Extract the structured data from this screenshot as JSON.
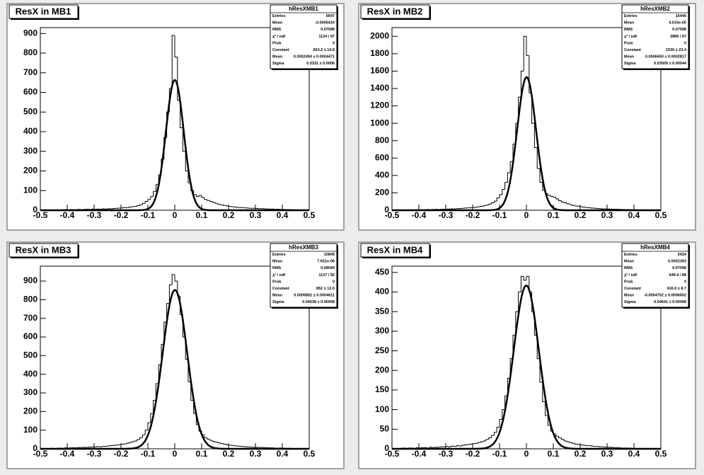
{
  "chart_data": [
    {
      "type": "histogram",
      "title": "ResX in MB1",
      "stats_title": "hResXMB1",
      "stats": [
        {
          "name": "Entries",
          "text": "6647"
        },
        {
          "name": "Mean",
          "text": "-0.0005419"
        },
        {
          "name": "RMS",
          "text": "0.07098"
        },
        {
          "name": "χ² / ndf",
          "text": "1134 / 97"
        },
        {
          "name": "Prob",
          "text": "0"
        },
        {
          "name": "Constant",
          "value": 663.2,
          "error": 14.9,
          "label": "663.2 ± 14.9"
        },
        {
          "name": "Mean",
          "value": 0.0002494,
          "error": 0.0004471,
          "label": "0.0002494 ± 0.0004471"
        },
        {
          "name": "Sigma",
          "value": 0.0331,
          "error": 0.0006,
          "label": "0.0331 ± 0.0006"
        }
      ],
      "bins": [
        -0.5,
        -0.49,
        -0.48,
        -0.47,
        -0.46,
        -0.45,
        -0.44,
        -0.43,
        -0.42,
        -0.41,
        -0.4,
        -0.39,
        -0.38,
        -0.37,
        -0.36,
        -0.35,
        -0.34,
        -0.33,
        -0.32,
        -0.31,
        -0.3,
        -0.29,
        -0.28,
        -0.27,
        -0.26,
        -0.25,
        -0.24,
        -0.23,
        -0.22,
        -0.21,
        -0.2,
        -0.19,
        -0.18,
        -0.17,
        -0.16,
        -0.15,
        -0.14,
        -0.13,
        -0.12,
        -0.11,
        -0.1,
        -0.09,
        -0.08,
        -0.07,
        -0.06,
        -0.05,
        -0.04,
        -0.03,
        -0.02,
        -0.01,
        0,
        0.01,
        0.02,
        0.03,
        0.04,
        0.05,
        0.06,
        0.07,
        0.08,
        0.09,
        0.1,
        0.11,
        0.12,
        0.13,
        0.14,
        0.15,
        0.16,
        0.17,
        0.18,
        0.19,
        0.2,
        0.21,
        0.22,
        0.23,
        0.24,
        0.25,
        0.26,
        0.27,
        0.28,
        0.29,
        0.3,
        0.31,
        0.32,
        0.33,
        0.34,
        0.35,
        0.36,
        0.37,
        0.38,
        0.39,
        0.4,
        0.41,
        0.42,
        0.43,
        0.44,
        0.45,
        0.46,
        0.47,
        0.48,
        0.49,
        0.5
      ],
      "values": [
        1,
        0,
        1,
        2,
        1,
        1,
        2,
        1,
        2,
        3,
        2,
        3,
        2,
        3,
        4,
        3,
        4,
        5,
        4,
        6,
        5,
        6,
        5,
        7,
        6,
        8,
        7,
        9,
        10,
        11,
        12,
        14,
        13,
        16,
        18,
        20,
        24,
        28,
        35,
        45,
        55,
        70,
        95,
        130,
        180,
        260,
        370,
        500,
        620,
        890,
        780,
        560,
        420,
        300,
        200,
        140,
        100,
        80,
        70,
        75,
        65,
        55,
        50,
        45,
        40,
        35,
        30,
        28,
        25,
        22,
        20,
        18,
        16,
        15,
        14,
        13,
        12,
        11,
        10,
        10,
        9,
        8,
        8,
        7,
        7,
        6,
        6,
        5,
        5,
        4,
        4,
        3,
        3,
        3,
        2,
        2,
        2,
        1,
        1,
        1
      ],
      "xlim": [
        -0.5,
        0.5
      ],
      "xticks": [
        -0.5,
        -0.4,
        -0.3,
        -0.2,
        -0.1,
        0,
        0.1,
        0.2,
        0.3,
        0.4,
        0.5
      ],
      "ylim": [
        0,
        930
      ],
      "yticks": [
        0,
        100,
        200,
        300,
        400,
        500,
        600,
        700,
        800,
        900
      ]
    },
    {
      "type": "histogram",
      "title": "ResX in MB2",
      "stats_title": "hResXMB2",
      "stats": [
        {
          "name": "Entries",
          "text": "16446"
        },
        {
          "name": "Mean",
          "text": "4.015e-05"
        },
        {
          "name": "RMS",
          "text": "0.07598"
        },
        {
          "name": "χ² / ndf",
          "text": "2889 / 97"
        },
        {
          "name": "Prob",
          "text": "0"
        },
        {
          "name": "Constant",
          "value": 1530,
          "error": 23.4,
          "label": "1530 ± 23.4"
        },
        {
          "name": "Mean",
          "value": 0.000665,
          "error": 0.0002817,
          "label": "0.0006650 ± 0.0002817"
        },
        {
          "name": "Sigma",
          "value": 0.03509,
          "error": 0.00044,
          "label": "0.03509 ± 0.00044"
        }
      ],
      "bins": [
        -0.5,
        -0.49,
        -0.48,
        -0.47,
        -0.46,
        -0.45,
        -0.44,
        -0.43,
        -0.42,
        -0.41,
        -0.4,
        -0.39,
        -0.38,
        -0.37,
        -0.36,
        -0.35,
        -0.34,
        -0.33,
        -0.32,
        -0.31,
        -0.3,
        -0.29,
        -0.28,
        -0.27,
        -0.26,
        -0.25,
        -0.24,
        -0.23,
        -0.22,
        -0.21,
        -0.2,
        -0.19,
        -0.18,
        -0.17,
        -0.16,
        -0.15,
        -0.14,
        -0.13,
        -0.12,
        -0.11,
        -0.1,
        -0.09,
        -0.08,
        -0.07,
        -0.06,
        -0.05,
        -0.04,
        -0.03,
        -0.02,
        -0.01,
        0,
        0.01,
        0.02,
        0.03,
        0.04,
        0.05,
        0.06,
        0.07,
        0.08,
        0.09,
        0.1,
        0.11,
        0.12,
        0.13,
        0.14,
        0.15,
        0.16,
        0.17,
        0.18,
        0.19,
        0.2,
        0.21,
        0.22,
        0.23,
        0.24,
        0.25,
        0.26,
        0.27,
        0.28,
        0.29,
        0.3,
        0.31,
        0.32,
        0.33,
        0.34,
        0.35,
        0.36,
        0.37,
        0.38,
        0.39,
        0.4,
        0.41,
        0.42,
        0.43,
        0.44,
        0.45,
        0.46,
        0.47,
        0.48,
        0.49,
        0.5
      ],
      "values": [
        2,
        1,
        3,
        2,
        3,
        4,
        3,
        5,
        4,
        6,
        5,
        6,
        7,
        8,
        7,
        9,
        10,
        9,
        11,
        12,
        13,
        14,
        16,
        15,
        18,
        20,
        22,
        25,
        27,
        30,
        32,
        36,
        40,
        45,
        52,
        60,
        70,
        85,
        105,
        140,
        180,
        240,
        320,
        430,
        560,
        760,
        1000,
        1300,
        1600,
        2000,
        1780,
        1350,
        1000,
        720,
        480,
        320,
        230,
        190,
        170,
        160,
        150,
        130,
        110,
        95,
        85,
        75,
        65,
        55,
        50,
        45,
        40,
        36,
        32,
        28,
        25,
        23,
        20,
        18,
        16,
        15,
        14,
        13,
        12,
        11,
        10,
        9,
        8,
        8,
        7,
        6,
        6,
        5,
        5,
        4,
        4,
        3,
        3,
        2,
        2,
        1
      ],
      "xlim": [
        -0.5,
        0.5
      ],
      "xticks": [
        -0.5,
        -0.4,
        -0.3,
        -0.2,
        -0.1,
        0,
        0.1,
        0.2,
        0.3,
        0.4,
        0.5
      ],
      "ylim": [
        0,
        2100
      ],
      "yticks": [
        0,
        200,
        400,
        600,
        800,
        1000,
        1200,
        1400,
        1600,
        1800,
        2000
      ]
    },
    {
      "type": "histogram",
      "title": "ResX in MB3",
      "stats_title": "hResXMB3",
      "stats": [
        {
          "name": "Entries",
          "text": "10849"
        },
        {
          "name": "Mean",
          "text": "7.921e-06"
        },
        {
          "name": "RMS",
          "text": "0.08044"
        },
        {
          "name": "χ² / ndf",
          "text": "1137 / 92"
        },
        {
          "name": "Prob",
          "text": "0"
        },
        {
          "name": "Constant",
          "value": 852,
          "error": 12.0,
          "label": "852 ± 12.0"
        },
        {
          "name": "Mean",
          "value": 0.0006862,
          "error": 0.0004611,
          "label": "0.0006862 ± 0.0004611"
        },
        {
          "name": "Sigma",
          "value": 0.04538,
          "error": 0.00058,
          "label": "0.04538 ± 0.00058"
        }
      ],
      "bins": [
        -0.5,
        -0.49,
        -0.48,
        -0.47,
        -0.46,
        -0.45,
        -0.44,
        -0.43,
        -0.42,
        -0.41,
        -0.4,
        -0.39,
        -0.38,
        -0.37,
        -0.36,
        -0.35,
        -0.34,
        -0.33,
        -0.32,
        -0.31,
        -0.3,
        -0.29,
        -0.28,
        -0.27,
        -0.26,
        -0.25,
        -0.24,
        -0.23,
        -0.22,
        -0.21,
        -0.2,
        -0.19,
        -0.18,
        -0.17,
        -0.16,
        -0.15,
        -0.14,
        -0.13,
        -0.12,
        -0.11,
        -0.1,
        -0.09,
        -0.08,
        -0.07,
        -0.06,
        -0.05,
        -0.04,
        -0.03,
        -0.02,
        -0.01,
        0,
        0.01,
        0.02,
        0.03,
        0.04,
        0.05,
        0.06,
        0.07,
        0.08,
        0.09,
        0.1,
        0.11,
        0.12,
        0.13,
        0.14,
        0.15,
        0.16,
        0.17,
        0.18,
        0.19,
        0.2,
        0.21,
        0.22,
        0.23,
        0.24,
        0.25,
        0.26,
        0.27,
        0.28,
        0.29,
        0.3,
        0.31,
        0.32,
        0.33,
        0.34,
        0.35,
        0.36,
        0.37,
        0.38,
        0.39,
        0.4,
        0.41,
        0.42,
        0.43,
        0.44,
        0.45,
        0.46,
        0.47,
        0.48,
        0.49,
        0.5
      ],
      "values": [
        1,
        2,
        1,
        2,
        3,
        2,
        3,
        4,
        3,
        5,
        4,
        5,
        6,
        5,
        7,
        6,
        8,
        7,
        9,
        10,
        10,
        12,
        11,
        13,
        14,
        15,
        17,
        18,
        20,
        22,
        24,
        26,
        30,
        33,
        38,
        42,
        50,
        60,
        75,
        100,
        140,
        190,
        260,
        350,
        450,
        560,
        680,
        780,
        880,
        935,
        900,
        820,
        720,
        600,
        480,
        360,
        260,
        190,
        130,
        95,
        75,
        60,
        52,
        45,
        40,
        36,
        32,
        28,
        25,
        22,
        20,
        18,
        16,
        15,
        14,
        12,
        11,
        10,
        9,
        8,
        8,
        7,
        7,
        6,
        6,
        5,
        5,
        4,
        4,
        4,
        3,
        3,
        3,
        2,
        2,
        2,
        1,
        1,
        1,
        0
      ],
      "xlim": [
        -0.5,
        0.5
      ],
      "xticks": [
        -0.5,
        -0.4,
        -0.3,
        -0.2,
        -0.1,
        0,
        0.1,
        0.2,
        0.3,
        0.4,
        0.5
      ],
      "ylim": [
        0,
        980
      ],
      "yticks": [
        0,
        100,
        200,
        300,
        400,
        500,
        600,
        700,
        800,
        900
      ]
    },
    {
      "type": "histogram",
      "title": "ResX in MB4",
      "stats_title": "hResXMB4",
      "stats": [
        {
          "name": "Entries",
          "text": "5424"
        },
        {
          "name": "Mean",
          "text": "0.0002393"
        },
        {
          "name": "RMS",
          "text": "0.07098"
        },
        {
          "name": "χ² / ndf",
          "text": "549.4 / 88"
        },
        {
          "name": "Prob",
          "text": "0"
        },
        {
          "name": "Constant",
          "value": 416.6,
          "error": 8.7,
          "label": "416.6 ± 8.7"
        },
        {
          "name": "Mean",
          "value": -0.0004752,
          "error": 0.0006652,
          "label": "-0.0004752 ± 0.0006652"
        },
        {
          "name": "Sigma",
          "value": 0.04641,
          "error": 0.00068,
          "label": "0.04641 ± 0.00068"
        }
      ],
      "bins": [
        -0.5,
        -0.49,
        -0.48,
        -0.47,
        -0.46,
        -0.45,
        -0.44,
        -0.43,
        -0.42,
        -0.41,
        -0.4,
        -0.39,
        -0.38,
        -0.37,
        -0.36,
        -0.35,
        -0.34,
        -0.33,
        -0.32,
        -0.31,
        -0.3,
        -0.29,
        -0.28,
        -0.27,
        -0.26,
        -0.25,
        -0.24,
        -0.23,
        -0.22,
        -0.21,
        -0.2,
        -0.19,
        -0.18,
        -0.17,
        -0.16,
        -0.15,
        -0.14,
        -0.13,
        -0.12,
        -0.11,
        -0.1,
        -0.09,
        -0.08,
        -0.07,
        -0.06,
        -0.05,
        -0.04,
        -0.03,
        -0.02,
        -0.01,
        0,
        0.01,
        0.02,
        0.03,
        0.04,
        0.05,
        0.06,
        0.07,
        0.08,
        0.09,
        0.1,
        0.11,
        0.12,
        0.13,
        0.14,
        0.15,
        0.16,
        0.17,
        0.18,
        0.19,
        0.2,
        0.21,
        0.22,
        0.23,
        0.24,
        0.25,
        0.26,
        0.27,
        0.28,
        0.29,
        0.3,
        0.31,
        0.32,
        0.33,
        0.34,
        0.35,
        0.36,
        0.37,
        0.38,
        0.39,
        0.4,
        0.41,
        0.42,
        0.43,
        0.44,
        0.45,
        0.46,
        0.47,
        0.48,
        0.49,
        0.5
      ],
      "values": [
        1,
        0,
        1,
        1,
        2,
        1,
        2,
        2,
        1,
        3,
        2,
        3,
        3,
        2,
        4,
        3,
        4,
        4,
        5,
        5,
        6,
        5,
        7,
        6,
        8,
        7,
        9,
        10,
        11,
        12,
        13,
        14,
        16,
        18,
        20,
        24,
        28,
        34,
        42,
        55,
        75,
        100,
        135,
        180,
        230,
        290,
        350,
        400,
        440,
        430,
        440,
        400,
        350,
        290,
        230,
        170,
        120,
        85,
        60,
        45,
        38,
        32,
        28,
        24,
        20,
        18,
        16,
        14,
        12,
        11,
        10,
        9,
        8,
        8,
        7,
        6,
        6,
        5,
        5,
        4,
        4,
        4,
        3,
        3,
        3,
        2,
        2,
        2,
        2,
        1,
        1,
        1,
        1,
        1,
        0,
        1,
        0,
        0,
        0,
        0
      ],
      "xlim": [
        -0.5,
        0.5
      ],
      "xticks": [
        -0.5,
        -0.4,
        -0.3,
        -0.2,
        -0.1,
        0,
        0.1,
        0.2,
        0.3,
        0.4,
        0.5
      ],
      "ylim": [
        0,
        466
      ],
      "yticks": [
        0,
        50,
        100,
        150,
        200,
        250,
        300,
        350,
        400,
        450
      ]
    }
  ]
}
